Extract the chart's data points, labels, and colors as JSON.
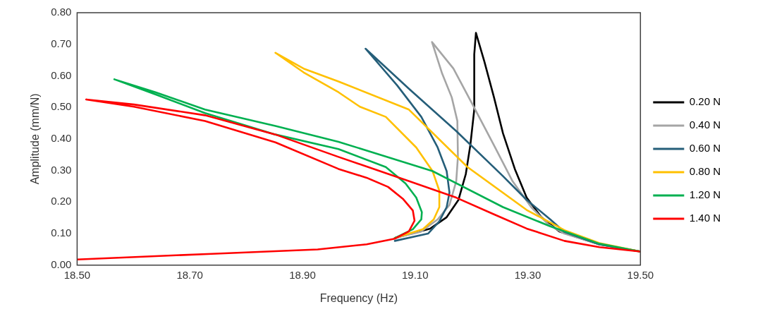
{
  "chart_data": {
    "type": "line",
    "xlabel": "Frequency (Hz)",
    "ylabel": "Amplitude (mm/N)",
    "xlim": [
      18.5,
      19.5
    ],
    "ylim": [
      0,
      0.8
    ],
    "xticks": [
      {
        "value": 18.5,
        "label": "18.50"
      },
      {
        "value": 18.7,
        "label": "18.70"
      },
      {
        "value": 18.9,
        "label": "18.90"
      },
      {
        "value": 19.1,
        "label": "19.10"
      },
      {
        "value": 19.3,
        "label": "19.30"
      },
      {
        "value": 19.5,
        "label": "19.50"
      }
    ],
    "yticks": [
      {
        "value": 0,
        "label": "0.00"
      },
      {
        "value": 0.1,
        "label": "0.10"
      },
      {
        "value": 0.2,
        "label": "0.20"
      },
      {
        "value": 0.3,
        "label": "0.30"
      },
      {
        "value": 0.4,
        "label": "0.40"
      },
      {
        "value": 0.5,
        "label": "0.50"
      },
      {
        "value": 0.6,
        "label": "0.60"
      },
      {
        "value": 0.7,
        "label": "0.70"
      },
      {
        "value": 0.8,
        "label": "0.80"
      }
    ],
    "grid": false,
    "legend": "right",
    "marker": "none",
    "line_style": "solid",
    "series": [
      {
        "name": "0.20 N",
        "color": "#000000",
        "x": [
          19.064,
          19.127,
          19.156,
          19.177,
          19.19,
          19.198,
          19.205,
          19.205,
          19.208,
          19.223,
          19.24,
          19.256,
          19.277,
          19.298,
          19.324,
          19.356,
          19.427,
          19.5
        ],
        "values": [
          0.086,
          0.116,
          0.152,
          0.207,
          0.289,
          0.38,
          0.493,
          0.668,
          0.736,
          0.645,
          0.532,
          0.418,
          0.305,
          0.214,
          0.152,
          0.107,
          0.066,
          0.043
        ]
      },
      {
        "name": "0.40 N",
        "color": "#a5a5a5",
        "x": [
          19.064,
          19.11,
          19.14,
          19.161,
          19.173,
          19.176,
          19.175,
          19.165,
          19.148,
          19.13,
          19.168,
          19.202,
          19.24,
          19.273,
          19.306,
          19.336,
          19.365,
          19.427,
          19.5
        ],
        "values": [
          0.086,
          0.106,
          0.145,
          0.191,
          0.266,
          0.343,
          0.457,
          0.532,
          0.607,
          0.707,
          0.623,
          0.509,
          0.38,
          0.266,
          0.184,
          0.13,
          0.1,
          0.066,
          0.043
        ]
      },
      {
        "name": "0.60 N",
        "color": "#255e79",
        "x": [
          19.064,
          19.123,
          19.143,
          19.156,
          19.161,
          19.156,
          19.14,
          19.111,
          19.068,
          19.012,
          19.089,
          19.173,
          19.256,
          19.298,
          19.34,
          19.365,
          19.427,
          19.5
        ],
        "values": [
          0.077,
          0.1,
          0.139,
          0.184,
          0.23,
          0.298,
          0.373,
          0.47,
          0.57,
          0.686,
          0.559,
          0.425,
          0.282,
          0.207,
          0.145,
          0.105,
          0.066,
          0.043
        ]
      },
      {
        "name": "0.80 N",
        "color": "#ffc000",
        "x": [
          19.064,
          19.114,
          19.133,
          19.143,
          19.143,
          19.131,
          19.102,
          19.048,
          19.002,
          18.964,
          18.902,
          18.852,
          18.902,
          18.964,
          19.089,
          19.193,
          19.298,
          19.365,
          19.427,
          19.5
        ],
        "values": [
          0.086,
          0.114,
          0.145,
          0.184,
          0.236,
          0.298,
          0.373,
          0.47,
          0.502,
          0.548,
          0.611,
          0.673,
          0.623,
          0.582,
          0.493,
          0.311,
          0.175,
          0.111,
          0.07,
          0.043
        ]
      },
      {
        "name": "1.20 N",
        "color": "#00b050",
        "x": [
          19.064,
          19.096,
          19.111,
          19.112,
          19.102,
          19.083,
          19.048,
          18.964,
          18.852,
          18.727,
          18.639,
          18.566,
          18.639,
          18.727,
          18.852,
          18.964,
          19.131,
          19.256,
          19.34,
          19.427,
          19.5
        ],
        "values": [
          0.086,
          0.114,
          0.145,
          0.168,
          0.214,
          0.259,
          0.311,
          0.368,
          0.414,
          0.482,
          0.541,
          0.589,
          0.548,
          0.493,
          0.441,
          0.391,
          0.298,
          0.184,
          0.123,
          0.068,
          0.043
        ]
      },
      {
        "name": "1.40 N",
        "color": "#ff0000",
        "x": [
          18.5,
          18.739,
          18.927,
          19.014,
          19.064,
          19.089,
          19.099,
          19.096,
          19.079,
          19.052,
          19.014,
          18.964,
          18.852,
          18.727,
          18.601,
          18.516,
          18.601,
          18.727,
          18.852,
          18.964,
          19.064,
          19.173,
          19.24,
          19.298,
          19.365,
          19.427,
          19.5
        ],
        "values": [
          0.018,
          0.036,
          0.05,
          0.066,
          0.084,
          0.107,
          0.141,
          0.173,
          0.209,
          0.248,
          0.277,
          0.305,
          0.389,
          0.457,
          0.502,
          0.525,
          0.509,
          0.475,
          0.414,
          0.343,
          0.282,
          0.214,
          0.161,
          0.116,
          0.077,
          0.057,
          0.043
        ]
      }
    ]
  }
}
